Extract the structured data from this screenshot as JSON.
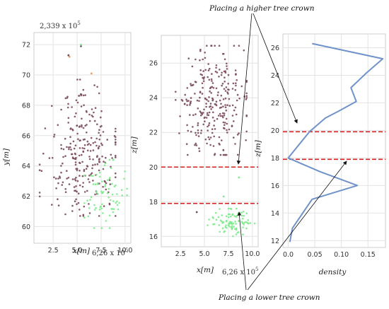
{
  "annotations": {
    "top": "Placing a higher tree crown",
    "bottom": "Placing a lower tree crown"
  },
  "colors": {
    "upper_points": "#7b4a59",
    "lower_points": "#7dea8c",
    "stray_points": "#e8a06a",
    "density_line": "#6f93c9",
    "reference_lines": "#d62020",
    "grid": "#e3e3e3"
  },
  "chart_data": [
    {
      "type": "scatter",
      "xlabel": "x[m]",
      "ylabel": "y[m]",
      "x_scale_label": "6,26 x 10",
      "x_scale_exp": "5",
      "y_scale_label": "2,339 x 10",
      "y_scale_exp": "5",
      "xlim": [
        0.5,
        10.6
      ],
      "ylim": [
        58.9,
        72.8
      ],
      "xticks": [
        2.5,
        5.0,
        7.5,
        10.0
      ],
      "yticks": [
        60,
        62,
        64,
        66,
        68,
        70,
        72
      ],
      "grid": true,
      "series": [
        {
          "key": "upper",
          "count": 260,
          "x_range": [
            1.1,
            9.0
          ],
          "y_range": [
            60.7,
            69.7
          ],
          "x_center": 5.4,
          "y_center": 64.6
        },
        {
          "key": "lower",
          "count": 75,
          "x_range": [
            5.5,
            10.2
          ],
          "y_range": [
            59.9,
            64.4
          ],
          "x_center": 7.8,
          "y_center": 62.3
        }
      ],
      "extra_points": [
        {
          "x": 5.4,
          "y": 71.9,
          "key": "upper"
        },
        {
          "x": 4.1,
          "y": 71.3,
          "key": "upper"
        },
        {
          "x": 4.2,
          "y": 71.2,
          "key": "stray"
        },
        {
          "x": 6.5,
          "y": 70.1,
          "key": "stray"
        },
        {
          "x": 5.4,
          "y": 72.0,
          "key": "lower"
        }
      ]
    },
    {
      "type": "scatter",
      "xlabel": "x[m]",
      "ylabel": "z[m]",
      "x_scale_label": "6,26 x 10",
      "x_scale_exp": "5",
      "xlim": [
        0.5,
        10.6
      ],
      "ylim": [
        15.4,
        27.6
      ],
      "xticks": [
        2.5,
        5.0,
        7.5,
        10.0
      ],
      "yticks": [
        16,
        18,
        20,
        22,
        24,
        26
      ],
      "grid": true,
      "reference_lines_y": [
        20.0,
        17.9
      ],
      "series": [
        {
          "key": "upper",
          "count": 270,
          "x_range": [
            2.0,
            9.4
          ],
          "y_range": [
            20.7,
            27.0
          ],
          "x_center": 5.8,
          "y_center": 23.6
        },
        {
          "key": "lower",
          "count": 90,
          "x_range": [
            5.3,
            10.3
          ],
          "y_range": [
            16.0,
            17.6
          ],
          "x_center": 7.8,
          "y_center": 16.8
        }
      ],
      "extra_points": [
        {
          "x": 8.6,
          "y": 19.4,
          "key": "lower"
        },
        {
          "x": 4.2,
          "y": 17.4,
          "key": "upper"
        },
        {
          "x": 7.0,
          "y": 18.3,
          "key": "lower"
        }
      ]
    },
    {
      "type": "line",
      "xlabel": "density",
      "ylabel": "z[m]",
      "xlim": [
        -0.01,
        0.183
      ],
      "ylim": [
        11.5,
        27.0
      ],
      "xticks": [
        0.0,
        0.05,
        0.1,
        0.15
      ],
      "xtick_labels": [
        "0.0",
        "0.05",
        "0.10",
        "0.15"
      ],
      "yticks": [
        12,
        14,
        16,
        18,
        20,
        22,
        24,
        26
      ],
      "grid": true,
      "reference_lines_y": [
        19.9,
        17.9
      ],
      "series": [
        {
          "x": [
            0.003,
            0.008,
            0.045,
            0.13,
            0.06,
            0.0,
            0.04,
            0.07,
            0.095,
            0.128,
            0.118,
            0.148,
            0.178,
            0.045
          ],
          "y": [
            11.9,
            12.9,
            15.0,
            16.0,
            17.0,
            18.0,
            19.9,
            20.9,
            21.4,
            22.1,
            23.1,
            24.2,
            25.2,
            26.3
          ]
        }
      ]
    }
  ]
}
